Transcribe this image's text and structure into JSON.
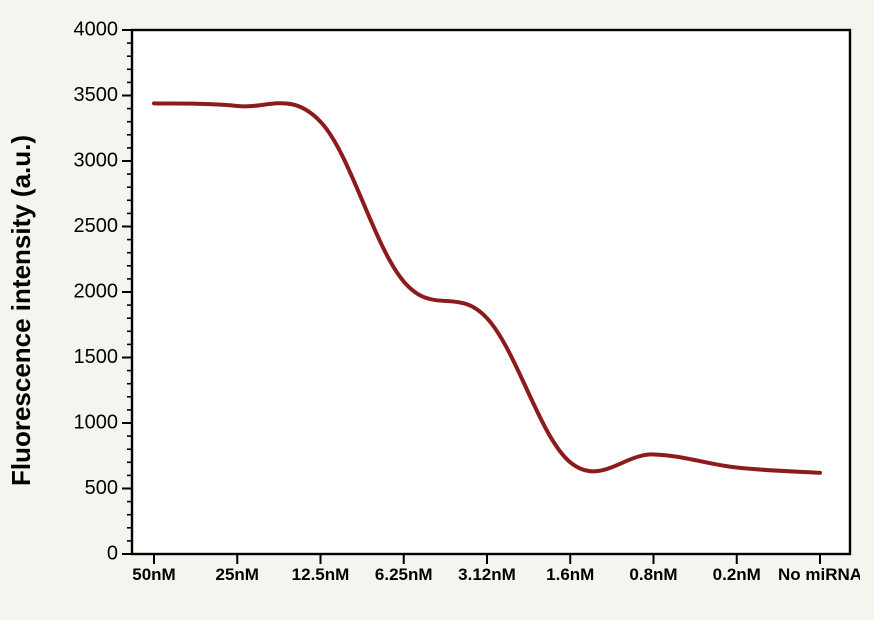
{
  "chart": {
    "type": "line",
    "background_color": "#f5f5f0",
    "plot_background_color": "#ffffff",
    "axis_color": "#000000",
    "axis_line_width": 2.4,
    "ylabel": "Fluorescence intensity (a.u.)",
    "ylabel_fontsize": 26,
    "ylabel_fontweight": 700,
    "xlabel": "",
    "ylim": [
      0,
      4000
    ],
    "ytick_step": 500,
    "y_minor_count_between": 4,
    "x_categories": [
      "50nM",
      "25nM",
      "12.5nM",
      "6.25nM",
      "3.12nM",
      "1.6nM",
      "0.8nM",
      "0.2nM",
      "No miRNA"
    ],
    "x_tick_label_fontsize": 17,
    "x_tick_label_fontweight": 700,
    "y_tick_label_fontsize": 20,
    "grid": false,
    "series": {
      "color": "#8c1c1c",
      "line_width": 4,
      "values": [
        3440,
        3420,
        3300,
        2080,
        1800,
        700,
        760,
        660,
        620
      ]
    }
  }
}
